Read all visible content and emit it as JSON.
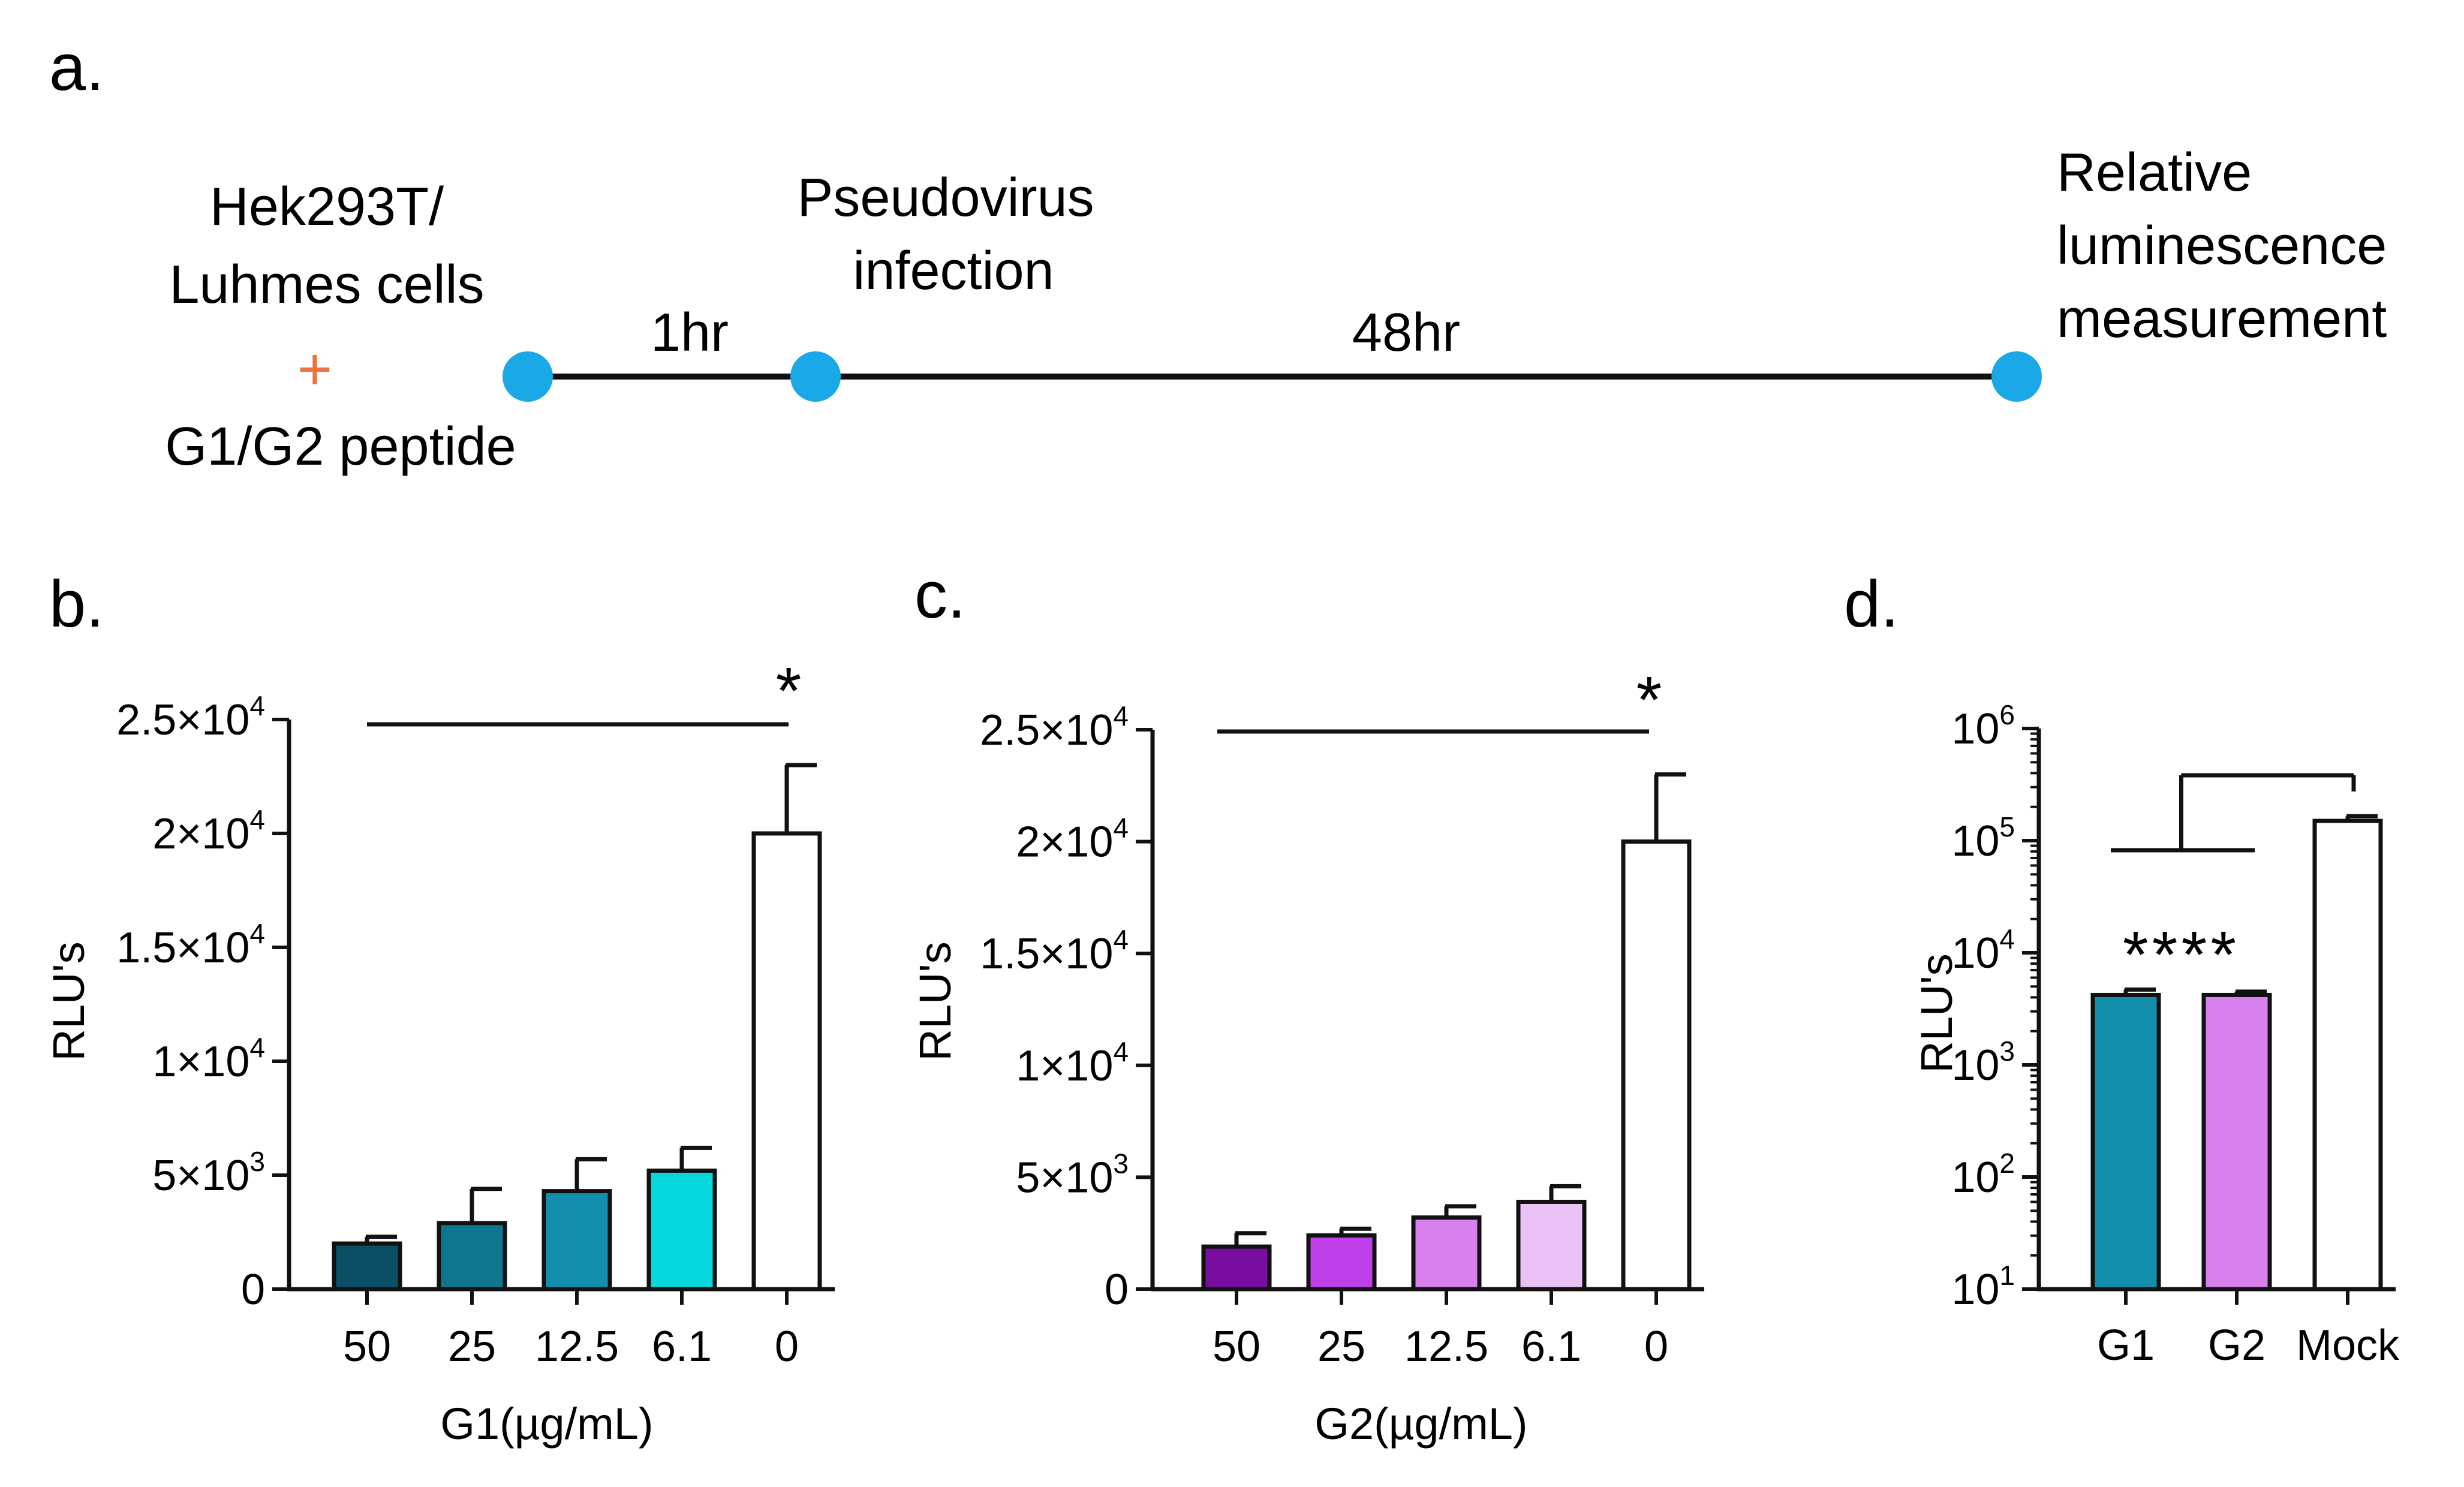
{
  "panels": {
    "a": "a.",
    "b": "b.",
    "c": "c.",
    "d": "d."
  },
  "timeline": {
    "start_label_line1": "Hek293T/",
    "start_label_line2": "Luhmes cells",
    "plus": "+",
    "start_label_line3": "G1/G2 peptide",
    "step1_duration": "1hr",
    "infection_line1": "Pseudovirus",
    "infection_line2": "infection",
    "step2_duration": "48hr",
    "end_line1": "Relative",
    "end_line2": "luminescence",
    "end_line3": "measurement",
    "colors": {
      "dot": "#1aa8e6",
      "plus": "#f07040",
      "line": "#111111"
    }
  },
  "chart_data": [
    {
      "id": "b",
      "type": "bar",
      "title": "",
      "xlabel": "G1(µg/mL)",
      "ylabel": "RLU's",
      "categories": [
        "50",
        "25",
        "12.5",
        "6.1",
        "0"
      ],
      "values": [
        2000,
        2900,
        4300,
        5200,
        20000
      ],
      "errors": [
        300,
        1500,
        1400,
        1000,
        3000
      ],
      "colors": [
        "#0b4f66",
        "#0f7690",
        "#138fad",
        "#06d8dc",
        "#ffffff"
      ],
      "ylim": [
        0,
        25000
      ],
      "yticks": [
        {
          "value": 0,
          "base": "0",
          "exp": ""
        },
        {
          "value": 5000,
          "base": "5×10",
          "exp": "3"
        },
        {
          "value": 10000,
          "base": "1×10",
          "exp": "4"
        },
        {
          "value": 15000,
          "base": "1.5×10",
          "exp": "4"
        },
        {
          "value": 20000,
          "base": "2×10",
          "exp": "4"
        },
        {
          "value": 25000,
          "base": "2.5×10",
          "exp": "4"
        }
      ],
      "significance": "*"
    },
    {
      "id": "c",
      "type": "bar",
      "title": "",
      "xlabel": "G2(µg/mL)",
      "ylabel": "RLU's",
      "categories": [
        "50",
        "25",
        "12.5",
        "6.1",
        "0"
      ],
      "values": [
        1900,
        2400,
        3200,
        3900,
        20000
      ],
      "errors": [
        600,
        300,
        500,
        700,
        3000
      ],
      "colors": [
        "#7a0ea0",
        "#bf40e8",
        "#d880ee",
        "#eac2f6",
        "#ffffff"
      ],
      "ylim": [
        0,
        25000
      ],
      "yticks": [
        {
          "value": 0,
          "base": "0",
          "exp": ""
        },
        {
          "value": 5000,
          "base": "5×10",
          "exp": "3"
        },
        {
          "value": 10000,
          "base": "1×10",
          "exp": "4"
        },
        {
          "value": 15000,
          "base": "1.5×10",
          "exp": "4"
        },
        {
          "value": 20000,
          "base": "2×10",
          "exp": "4"
        },
        {
          "value": 25000,
          "base": "2.5×10",
          "exp": "4"
        }
      ],
      "significance": "*"
    },
    {
      "id": "d",
      "type": "bar",
      "scale": "log",
      "title": "",
      "xlabel": "",
      "ylabel": "RLU's",
      "categories": [
        "G1",
        "G2",
        "Mock"
      ],
      "values": [
        4200,
        4200,
        150000
      ],
      "errors": [
        500,
        300,
        15000
      ],
      "colors": [
        "#138fad",
        "#d880ee",
        "#ffffff"
      ],
      "ylim": [
        10,
        1000000
      ],
      "yticks": [
        {
          "value": 10,
          "base": "10",
          "exp": "1"
        },
        {
          "value": 100,
          "base": "10",
          "exp": "2"
        },
        {
          "value": 1000,
          "base": "10",
          "exp": "3"
        },
        {
          "value": 10000,
          "base": "10",
          "exp": "4"
        },
        {
          "value": 100000,
          "base": "10",
          "exp": "5"
        },
        {
          "value": 1000000,
          "base": "10",
          "exp": "6"
        }
      ],
      "significance": "****"
    }
  ]
}
